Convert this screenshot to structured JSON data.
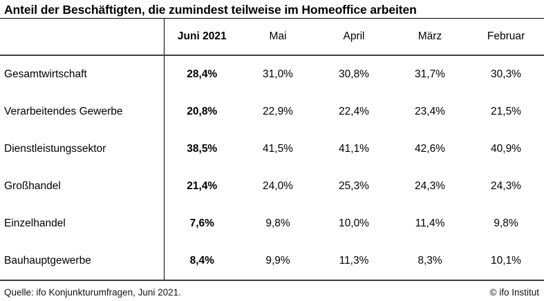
{
  "title": "Anteil der Beschäftigten, die zumindest teilweise im Homeoffice arbeiten",
  "table": {
    "columns": [
      "Juni 2021",
      "Mai",
      "April",
      "März",
      "Februar"
    ],
    "rows": [
      {
        "label": "Gesamtwirtschaft",
        "values": [
          "28,4%",
          "31,0%",
          "30,8%",
          "31,7%",
          "30,3%"
        ]
      },
      {
        "label": "Verarbeitendes Gewerbe",
        "values": [
          "20,8%",
          "22,9%",
          "22,4%",
          "23,4%",
          "21,5%"
        ]
      },
      {
        "label": "Dienstleistungssektor",
        "values": [
          "38,5%",
          "41,5%",
          "41,1%",
          "42,6%",
          "40,9%"
        ]
      },
      {
        "label": "Großhandel",
        "values": [
          "21,4%",
          "24,0%",
          "25,3%",
          "24,3%",
          "24,3%"
        ]
      },
      {
        "label": "Einzelhandel",
        "values": [
          "7,6%",
          "9,8%",
          "10,0%",
          "11,4%",
          "9,8%"
        ]
      },
      {
        "label": "Bauhauptgewerbe",
        "values": [
          "8,4%",
          "9,9%",
          "11,3%",
          "8,3%",
          "10,1%"
        ]
      }
    ]
  },
  "footer": {
    "source": "Quelle: ifo Konjunkturumfragen, Juni 2021.",
    "copyright": "© ifo Institut"
  },
  "chart_data": {
    "type": "table",
    "title": "Anteil der Beschäftigten, die zumindest teilweise im Homeoffice arbeiten",
    "unit": "%",
    "columns": [
      "Juni 2021",
      "Mai",
      "April",
      "März",
      "Februar"
    ],
    "categories": [
      "Gesamtwirtschaft",
      "Verarbeitendes Gewerbe",
      "Dienstleistungssektor",
      "Großhandel",
      "Einzelhandel",
      "Bauhauptgewerbe"
    ],
    "series": [
      {
        "name": "Juni 2021",
        "values": [
          28.4,
          20.8,
          38.5,
          21.4,
          7.6,
          8.4
        ]
      },
      {
        "name": "Mai",
        "values": [
          31.0,
          22.9,
          41.5,
          24.0,
          9.8,
          9.9
        ]
      },
      {
        "name": "April",
        "values": [
          30.8,
          22.4,
          41.1,
          25.3,
          10.0,
          11.3
        ]
      },
      {
        "name": "März",
        "values": [
          31.7,
          23.4,
          42.6,
          24.3,
          11.4,
          8.3
        ]
      },
      {
        "name": "Februar",
        "values": [
          30.3,
          21.5,
          40.9,
          24.3,
          9.8,
          10.1
        ]
      }
    ]
  }
}
